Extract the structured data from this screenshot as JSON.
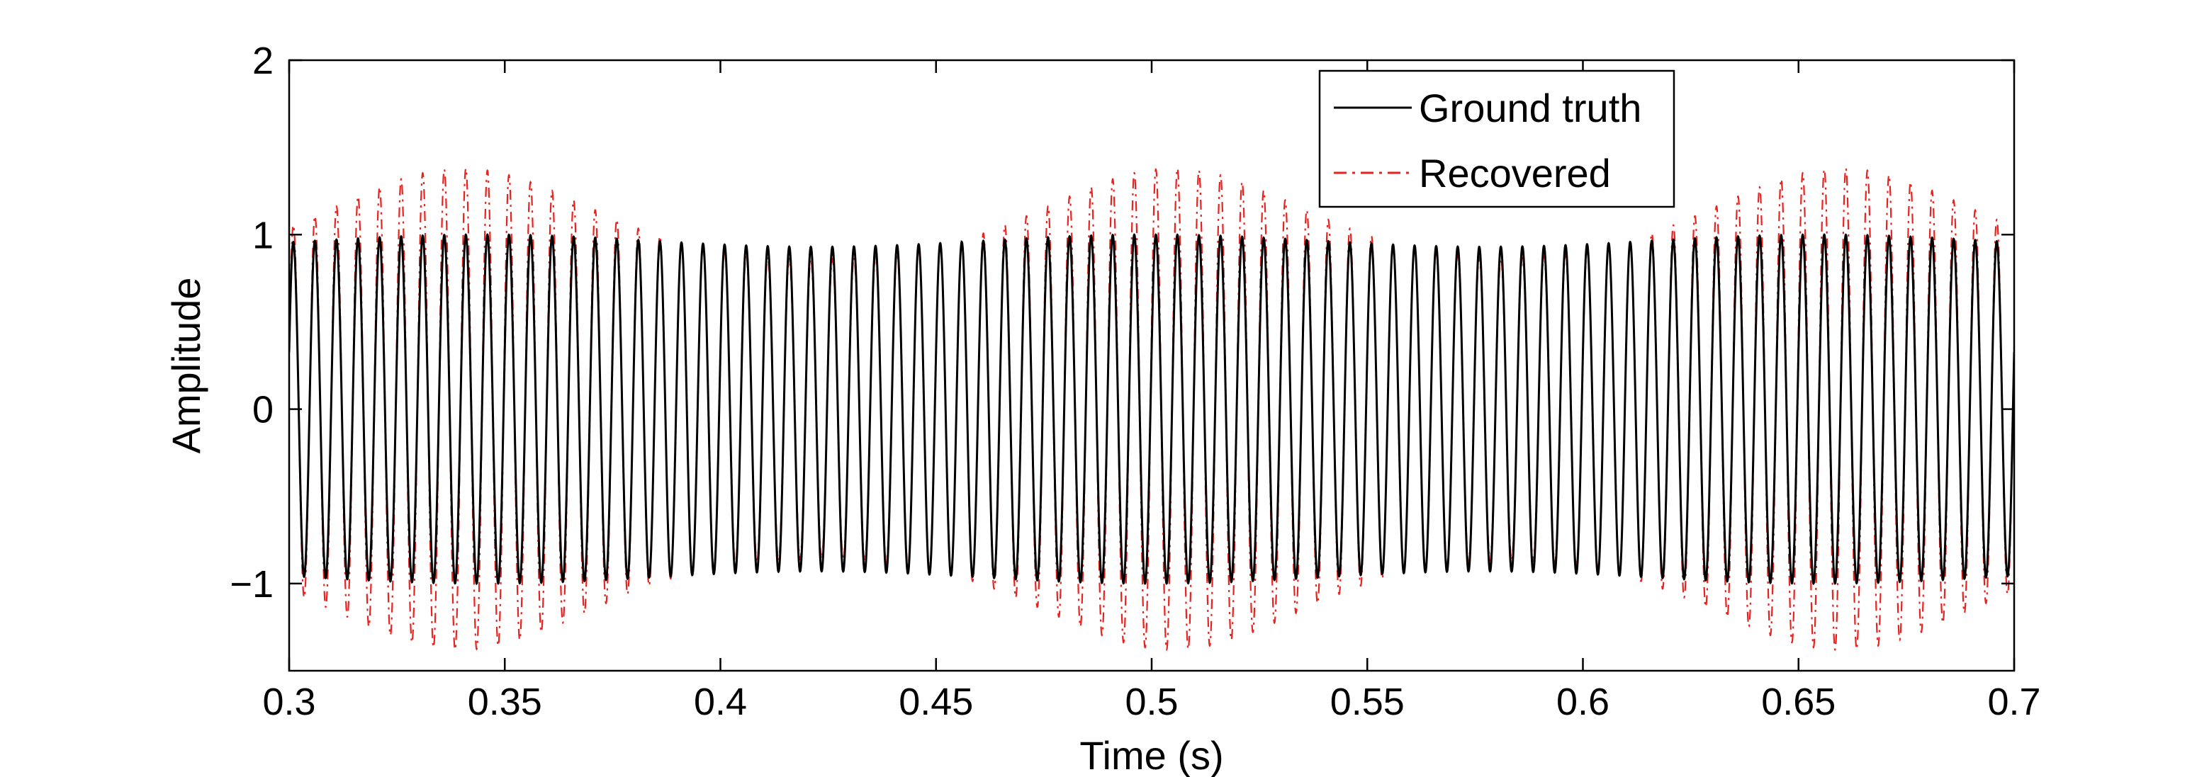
{
  "chart_data": {
    "type": "line",
    "title": "",
    "xlabel": "Time (s)",
    "ylabel": "Amplitude",
    "xlim": [
      0.3,
      0.7
    ],
    "ylim": [
      -1.5,
      2
    ],
    "xticks": [
      0.3,
      0.35,
      0.4,
      0.45,
      0.5,
      0.55,
      0.6,
      0.65,
      0.7
    ],
    "xtick_labels": [
      "0.3",
      "0.35",
      "0.4",
      "0.45",
      "0.5",
      "0.55",
      "0.6",
      "0.65",
      "0.7"
    ],
    "yticks": [
      -1,
      0,
      1,
      2
    ],
    "ytick_labels": [
      "−1",
      "0",
      "1",
      "2"
    ],
    "grid": false,
    "legend_position": "top-right",
    "series": [
      {
        "name": "Ground truth",
        "color": "#000000",
        "line_style": "solid",
        "oscillation_hz": 200,
        "amplitude": 1.0,
        "envelope_minimum": 0.93
      },
      {
        "name": "Recovered",
        "color": "#e8231f",
        "line_style": "dash-dot",
        "oscillation_hz": 200,
        "amplitude_range": [
          0.85,
          1.38
        ],
        "envelope_peaks_s": [
          0.34,
          0.505,
          0.66
        ]
      }
    ]
  },
  "legend": {
    "items": [
      {
        "label": "Ground truth",
        "color": "#000000",
        "style": "solid"
      },
      {
        "label": "Recovered",
        "color": "#e8231f",
        "style": "dash-dot"
      }
    ]
  }
}
